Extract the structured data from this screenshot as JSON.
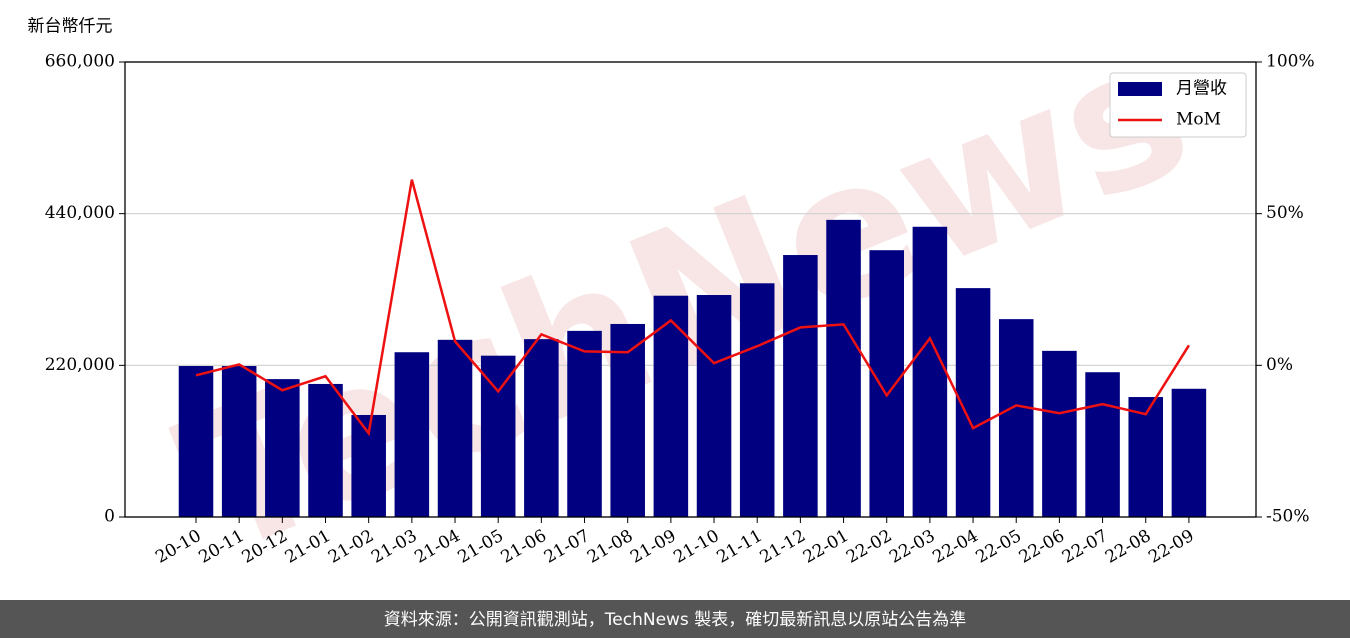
{
  "chart_data": {
    "type": "bar_line",
    "y_label": "新台幣仟元",
    "watermark": "TechNews",
    "source": "資料來源：公開資訊觀測站，TechNews 製表，確切最新訊息以原站公告為準",
    "categories": [
      "20-10",
      "20-11",
      "20-12",
      "21-01",
      "21-02",
      "21-03",
      "21-04",
      "21-05",
      "21-06",
      "21-07",
      "21-08",
      "21-09",
      "21-10",
      "21-11",
      "21-12",
      "22-01",
      "22-02",
      "22-03",
      "22-04",
      "22-05",
      "22-06",
      "22-07",
      "22-08",
      "22-09"
    ],
    "series": [
      {
        "name": "月營收",
        "type": "bar",
        "color": "#000080",
        "values": [
          219000,
          219000,
          200000,
          193000,
          148000,
          239000,
          257000,
          234000,
          258000,
          270000,
          280000,
          321000,
          322000,
          339000,
          380000,
          431000,
          387000,
          421000,
          332000,
          287000,
          241000,
          210000,
          174000,
          186000
        ]
      },
      {
        "name": "MoM",
        "type": "line",
        "axis": "y2",
        "color": "#ee1111",
        "values": [
          -3.3,
          0.3,
          -8.2,
          -3.6,
          -22.4,
          61.2,
          7.9,
          -8.6,
          10.2,
          4.6,
          4.3,
          14.8,
          0.7,
          6.3,
          12.5,
          13.5,
          -9.9,
          8.9,
          -20.7,
          -13.2,
          -15.8,
          -12.8,
          -16.1,
          6.6
        ]
      }
    ],
    "ylim": [
      0,
      660000
    ],
    "yticks": [
      0,
      {
        "value": 220000,
        "label": "220,000"
      },
      {
        "value": 440000,
        "label": "440,000"
      },
      {
        "value": 660000,
        "label": "660,000"
      }
    ],
    "y2lim": [
      -50,
      100
    ],
    "y2ticks": [
      {
        "value": -50,
        "label": "-50%"
      },
      {
        "value": 0,
        "label": "0%"
      },
      {
        "value": 50,
        "label": "50%"
      },
      {
        "value": 100,
        "label": "100%"
      }
    ],
    "grid": true,
    "legend": "upper right"
  }
}
